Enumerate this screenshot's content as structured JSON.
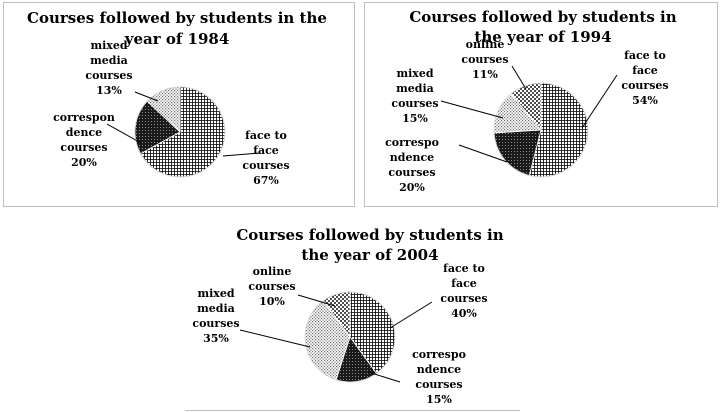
{
  "chart_data": [
    {
      "type": "pie",
      "title": "Courses followed by students in the year of 1984",
      "title_lines": [
        "Courses followed by students in the",
        "year of 1984"
      ],
      "slices": [
        {
          "name": "face to face courses",
          "label_lines": [
            "face to",
            "face",
            "courses"
          ],
          "pct_text": "67%",
          "value": 67,
          "pattern": "grid"
        },
        {
          "name": "correspondence courses",
          "label_lines": [
            "correspon",
            "dence",
            "courses"
          ],
          "pct_text": "20%",
          "value": 20,
          "pattern": "dark"
        },
        {
          "name": "mixed media courses",
          "label_lines": [
            "mixed",
            "media",
            "courses"
          ],
          "pct_text": "13%",
          "value": 13,
          "pattern": "dots"
        }
      ]
    },
    {
      "type": "pie",
      "title": "Courses followed by students in the year of 1994",
      "title_lines": [
        "Courses followed by students in",
        "the year of 1994"
      ],
      "slices": [
        {
          "name": "face to face courses",
          "label_lines": [
            "face to",
            "face",
            "courses"
          ],
          "pct_text": "54%",
          "value": 54,
          "pattern": "grid"
        },
        {
          "name": "correspondence courses",
          "label_lines": [
            "correspo",
            "ndence",
            "courses"
          ],
          "pct_text": "20%",
          "value": 20,
          "pattern": "dark"
        },
        {
          "name": "mixed media courses",
          "label_lines": [
            "mixed",
            "media",
            "courses"
          ],
          "pct_text": "15%",
          "value": 15,
          "pattern": "dots"
        },
        {
          "name": "online courses",
          "label_lines": [
            "online",
            "courses"
          ],
          "pct_text": "11%",
          "value": 11,
          "pattern": "check"
        }
      ]
    },
    {
      "type": "pie",
      "title": "Courses followed by students in the year of 2004",
      "title_lines": [
        "Courses followed by students in",
        "the year of 2004"
      ],
      "slices": [
        {
          "name": "face to face courses",
          "label_lines": [
            "face to",
            "face",
            "courses"
          ],
          "pct_text": "40%",
          "value": 40,
          "pattern": "grid"
        },
        {
          "name": "correspondence courses",
          "label_lines": [
            "correspo",
            "ndence",
            "courses"
          ],
          "pct_text": "15%",
          "value": 15,
          "pattern": "dark"
        },
        {
          "name": "mixed media courses",
          "label_lines": [
            "mixed",
            "media",
            "courses"
          ],
          "pct_text": "35%",
          "value": 35,
          "pattern": "dots"
        },
        {
          "name": "online courses",
          "label_lines": [
            "online",
            "courses"
          ],
          "pct_text": "10%",
          "value": 10,
          "pattern": "check"
        }
      ]
    }
  ]
}
